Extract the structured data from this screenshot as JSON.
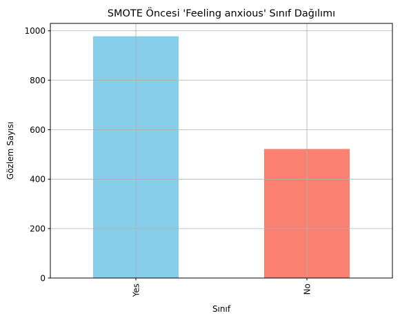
{
  "chart_data": {
    "type": "bar",
    "title": "SMOTE Öncesi 'Feeling anxious' Sınıf Dağılımı",
    "xlabel": "Sınıf",
    "ylabel": "Gözlem Sayısı",
    "categories": [
      "Yes",
      "No"
    ],
    "values": [
      978,
      522
    ],
    "colors": [
      "#87ceeb",
      "#fa8072"
    ],
    "ylim": [
      0,
      1030
    ],
    "yticks": [
      0,
      200,
      400,
      600,
      800,
      1000
    ],
    "grid": true,
    "x_tick_rotation": "vertical"
  }
}
